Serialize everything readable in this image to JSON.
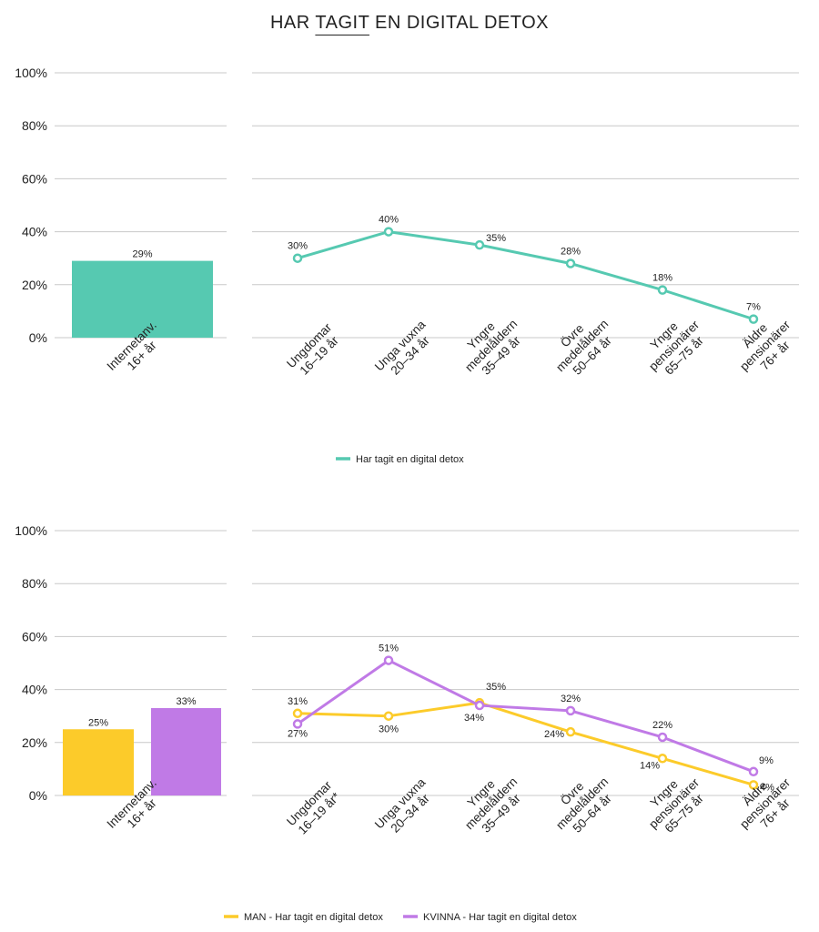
{
  "title": {
    "before": "HAR ",
    "underlined": "TAGIT",
    "after": " EN DIGITAL DETOX"
  },
  "colors": {
    "total": "#56c9b1",
    "man": "#fccb2a",
    "kvinna": "#c07ae6",
    "grid": "#c8c8c8",
    "text": "#222222"
  },
  "chart_data": [
    {
      "type": "bar",
      "categories": [
        "Internetanv.\n16+ år"
      ],
      "series": [
        {
          "values": [
            29
          ]
        }
      ],
      "value_suffix": "%",
      "ylim": [
        0,
        100
      ],
      "yticks": [
        "0%",
        "20%",
        "40%",
        "60%",
        "80%",
        "100%"
      ],
      "grid": true
    },
    {
      "type": "line",
      "categories": [
        "Ungdomar\n16–19 år",
        "Unga vuxna\n20–34 år",
        "Yngre\nmedelåldern\n35–49 år",
        "Övre\nmedelåldern\n50–64 år",
        "Yngre\npensionärer\n65–75 år",
        "Äldre\npensionärer\n76+ år"
      ],
      "series": [
        {
          "name": "Har tagit en digital detox",
          "values": [
            30,
            40,
            35,
            28,
            18,
            7
          ]
        }
      ],
      "value_suffix": "%",
      "ylim": [
        0,
        100
      ],
      "grid": true,
      "legend": "bottom"
    },
    {
      "type": "bar",
      "categories": [
        "Internetanv.\n16+ år"
      ],
      "series": [
        {
          "name": "MAN",
          "values": [
            25
          ]
        },
        {
          "name": "KVINNA",
          "values": [
            33
          ]
        }
      ],
      "value_suffix": "%",
      "ylim": [
        0,
        100
      ],
      "yticks": [
        "0%",
        "20%",
        "40%",
        "60%",
        "80%",
        "100%"
      ],
      "grid": true
    },
    {
      "type": "line",
      "categories": [
        "Ungdomar\n16–19 år*",
        "Unga vuxna\n20–34 år",
        "Yngre\nmedelåldern\n35–49 år",
        "Övre\nmedelåldern\n50–64 år",
        "Yngre\npensionärer\n65–75 år",
        "Äldre\npensionärer\n76+ år"
      ],
      "series": [
        {
          "name": "MAN - Har tagit en digital detox",
          "values": [
            31,
            30,
            35,
            24,
            14,
            4
          ]
        },
        {
          "name": "KVINNA - Har tagit en digital detox",
          "values": [
            27,
            51,
            34,
            32,
            22,
            9
          ]
        }
      ],
      "value_suffix": "%",
      "ylim": [
        0,
        100
      ],
      "grid": true,
      "legend": "bottom"
    }
  ]
}
